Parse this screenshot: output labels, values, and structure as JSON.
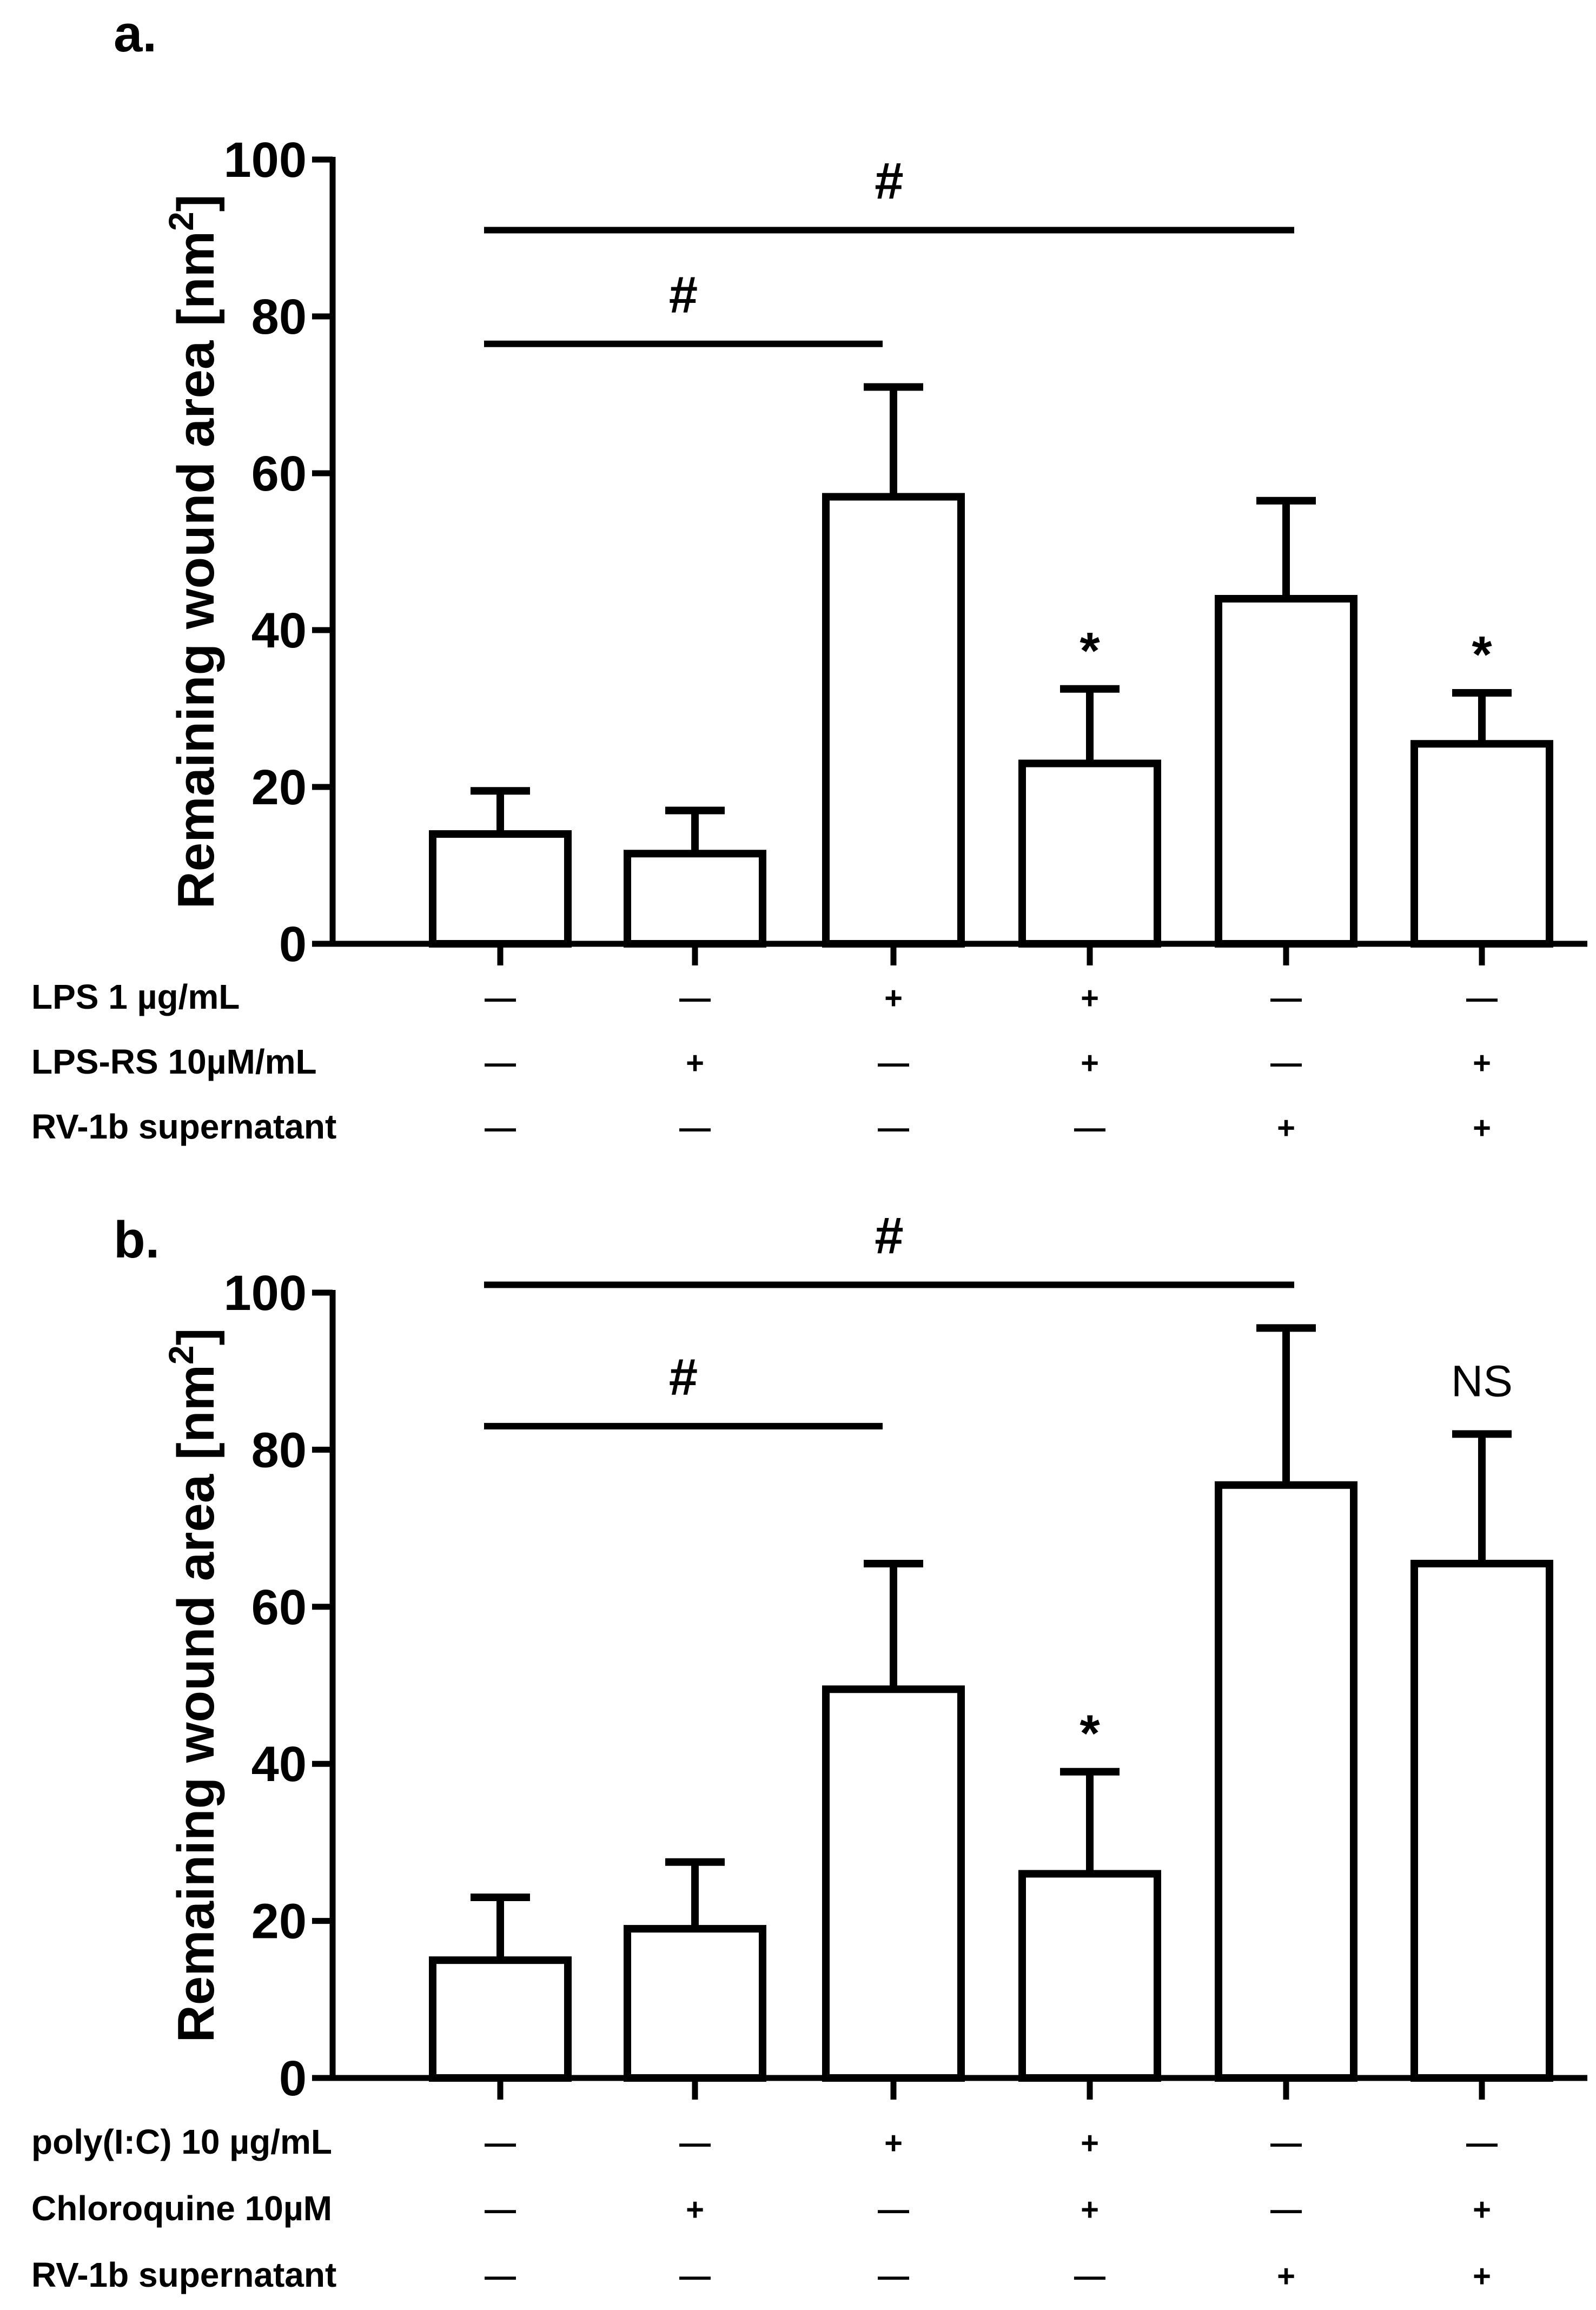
{
  "chart_data": [
    {
      "type": "bar",
      "panel_label": "a.",
      "ylabel": "Remaining wound area [nm",
      "ylabel_sup": "2",
      "ylabel_close": "]",
      "ylim": [
        0,
        100
      ],
      "yticks": [
        "0",
        "20",
        "40",
        "60",
        "80",
        "100"
      ],
      "values": [
        14,
        11.5,
        57,
        23,
        44,
        25.5
      ],
      "errors": [
        5.5,
        5.5,
        14,
        9.5,
        12.5,
        6.5
      ],
      "bar_marks": [
        "",
        "",
        "",
        "*",
        "",
        "*"
      ],
      "conditions": [
        {
          "label": "LPS 1 µg/mL",
          "values": [
            "—",
            "—",
            "+",
            "+",
            "—",
            "—"
          ]
        },
        {
          "label": "LPS-RS 10µM/mL",
          "values": [
            "—",
            "+",
            "—",
            "+",
            "—",
            "+"
          ]
        },
        {
          "label": "RV-1b supernatant",
          "values": [
            "—",
            "—",
            "—",
            "—",
            "+",
            "+"
          ]
        }
      ],
      "comparisons": [
        {
          "from": 0,
          "to": 4,
          "level": 91,
          "label": "#"
        },
        {
          "from": 0,
          "to": 2,
          "level": 76.5,
          "label": "#"
        }
      ]
    },
    {
      "type": "bar",
      "panel_label": "b.",
      "ylabel": "Remaining wound area [nm",
      "ylabel_sup": "2",
      "ylabel_close": "]",
      "ylim": [
        0,
        100
      ],
      "yticks": [
        "0",
        "20",
        "40",
        "60",
        "80",
        "100"
      ],
      "values": [
        15,
        19,
        49.5,
        26,
        75.5,
        65.5
      ],
      "errors": [
        8,
        8.5,
        16,
        13,
        20,
        16.5
      ],
      "bar_marks": [
        "",
        "",
        "",
        "*",
        "",
        "NS"
      ],
      "conditions": [
        {
          "label": "poly(I:C) 10 µg/mL",
          "values": [
            "—",
            "—",
            "+",
            "+",
            "—",
            "—"
          ]
        },
        {
          "label": "Chloroquine 10µM",
          "values": [
            "—",
            "+",
            "—",
            "+",
            "—",
            "+"
          ]
        },
        {
          "label": "RV-1b supernatant",
          "values": [
            "—",
            "—",
            "—",
            "—",
            "+",
            "+"
          ]
        }
      ],
      "comparisons": [
        {
          "from": 0,
          "to": 4,
          "level": 101,
          "label": "#"
        },
        {
          "from": 0,
          "to": 2,
          "level": 83,
          "label": "#"
        }
      ]
    }
  ]
}
